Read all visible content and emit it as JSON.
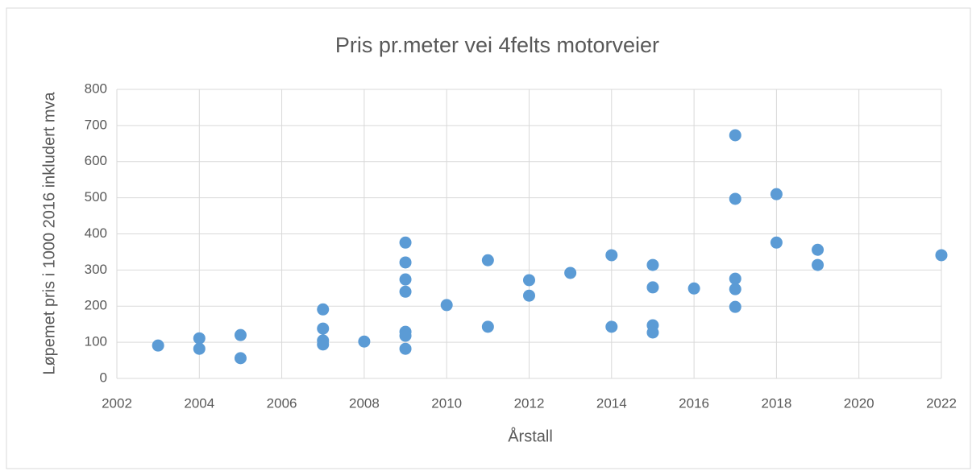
{
  "chart_data": {
    "type": "scatter",
    "title": "Pris pr.meter vei 4felts  motorveier",
    "xlabel": "Årstall",
    "ylabel": "Løpemet pris i 1000  2016 inkludert mva",
    "x": [
      2003,
      2004,
      2004,
      2005,
      2005,
      2007,
      2007,
      2007,
      2007,
      2008,
      2009,
      2009,
      2009,
      2009,
      2009,
      2009,
      2009,
      2010,
      2011,
      2011,
      2012,
      2012,
      2013,
      2014,
      2014,
      2015,
      2015,
      2015,
      2015,
      2016,
      2017,
      2017,
      2017,
      2017,
      2017,
      2018,
      2018,
      2019,
      2019,
      2022
    ],
    "values": [
      91,
      111,
      82,
      120,
      56,
      191,
      138,
      105,
      94,
      102,
      376,
      321,
      274,
      240,
      129,
      118,
      82,
      203,
      327,
      143,
      272,
      229,
      292,
      341,
      143,
      314,
      252,
      147,
      127,
      249,
      673,
      497,
      276,
      247,
      198,
      510,
      376,
      356,
      314,
      341
    ],
    "color": "#5b9bd5",
    "xlim": [
      2002,
      2022
    ],
    "xticks": [
      2002,
      2004,
      2006,
      2008,
      2010,
      2012,
      2014,
      2016,
      2018,
      2020,
      2022
    ],
    "ylim": [
      0,
      800
    ],
    "yticks": [
      0,
      100,
      200,
      300,
      400,
      500,
      600,
      700,
      800
    ],
    "grid": true
  }
}
